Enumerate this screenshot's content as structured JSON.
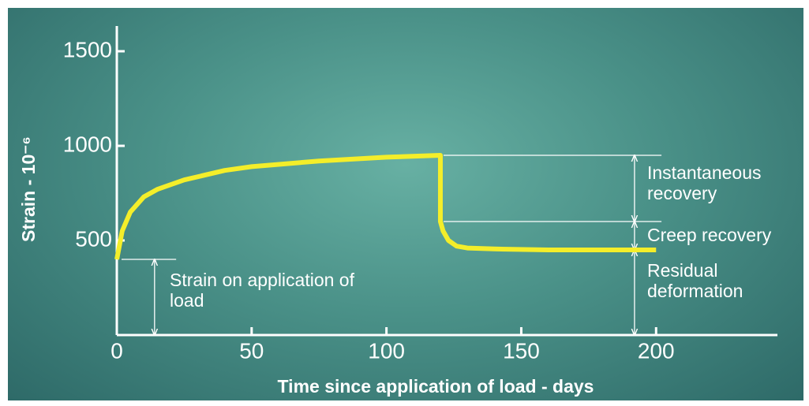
{
  "chart_data": {
    "type": "line",
    "xlabel": "Time since application of load - days",
    "ylabel": "Strain - 10⁻⁶",
    "x": [
      0,
      2,
      5,
      10,
      15,
      25,
      40,
      50,
      75,
      100,
      120,
      120,
      121,
      123,
      126,
      130,
      140,
      160,
      200
    ],
    "series": [
      {
        "name": "Strain",
        "color": "#f4ee2a",
        "values": [
          400,
          550,
          650,
          730,
          770,
          820,
          870,
          890,
          920,
          940,
          950,
          600,
          550,
          500,
          470,
          460,
          455,
          450,
          450
        ]
      }
    ],
    "xlim": [
      0,
      245
    ],
    "ylim": [
      0,
      1600
    ],
    "xticks": [
      0,
      50,
      100,
      150,
      200
    ],
    "yticks": [
      500,
      1000,
      1500
    ],
    "annotations": [
      "Strain on application of load",
      "Instantaneous recovery",
      "Creep recovery",
      "Residual deformation"
    ]
  }
}
